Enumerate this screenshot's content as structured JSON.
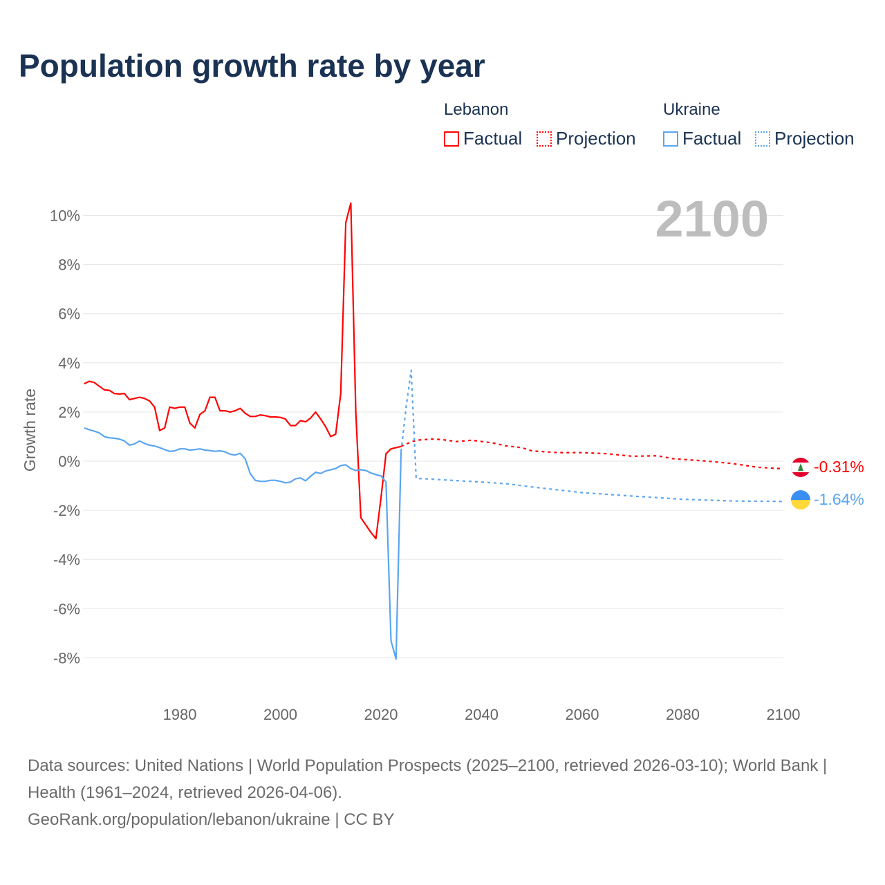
{
  "title": "Population growth rate by year",
  "legend": {
    "groups": [
      {
        "country": "Lebanon",
        "factual": "Factual",
        "projection": "Projection",
        "color": "#ff0000"
      },
      {
        "country": "Ukraine",
        "factual": "Factual",
        "projection": "Projection",
        "color": "#5aa5f0"
      }
    ]
  },
  "year_label": "2100",
  "end_labels": {
    "lebanon": "-0.31%",
    "ukraine": "-1.64%"
  },
  "footer": {
    "sources": "Data sources: United Nations | World Population Prospects (2025–2100, retrieved 2026-03-10); World Bank | Health (1961–2024, retrieved 2026-04-06).",
    "credit": "GeoRank.org/population/lebanon/ukraine | CC BY"
  },
  "chart_data": {
    "type": "line",
    "title": "Population growth rate by year",
    "xlabel": "",
    "ylabel": "Growth rate",
    "xlim": [
      1961,
      2100
    ],
    "ylim": [
      -9.5,
      11
    ],
    "xticks": [
      1980,
      2000,
      2020,
      2040,
      2060,
      2080,
      2100
    ],
    "yticks": [
      10,
      8,
      6,
      4,
      2,
      0,
      -2,
      -4,
      -6,
      -8
    ],
    "ytick_labels": [
      "10%",
      "8%",
      "6%",
      "4%",
      "2%",
      "0%",
      "-2%",
      "-4%",
      "-6%",
      "-8%"
    ],
    "series": [
      {
        "name": "Lebanon Factual",
        "color": "#ff0000",
        "dashed": false,
        "x_start": 1961,
        "values": [
          3.15,
          3.25,
          3.2,
          3.05,
          2.9,
          2.88,
          2.75,
          2.73,
          2.75,
          2.5,
          2.55,
          2.6,
          2.55,
          2.45,
          2.2,
          1.25,
          1.35,
          2.2,
          2.15,
          2.2,
          2.2,
          1.55,
          1.35,
          1.9,
          2.05,
          2.6,
          2.6,
          2.05,
          2.05,
          2.0,
          2.05,
          2.15,
          1.95,
          1.82,
          1.82,
          1.88,
          1.85,
          1.8,
          1.8,
          1.78,
          1.72,
          1.45,
          1.45,
          1.65,
          1.6,
          1.75,
          2.0,
          1.72,
          1.4,
          1.0,
          1.1,
          2.75,
          9.7,
          10.5,
          2.0,
          -2.3,
          -2.6,
          -2.9,
          -3.15,
          -1.5,
          0.3,
          0.5,
          0.55,
          0.6
        ]
      },
      {
        "name": "Lebanon Projection",
        "color": "#ff0000",
        "dashed": true,
        "x": [
          2024,
          2025,
          2027,
          2030,
          2032,
          2035,
          2038,
          2042,
          2045,
          2048,
          2050,
          2055,
          2060,
          2065,
          2070,
          2075,
          2078,
          2085,
          2090,
          2095,
          2100
        ],
        "values": [
          0.6,
          0.7,
          0.85,
          0.9,
          0.88,
          0.8,
          0.85,
          0.75,
          0.62,
          0.55,
          0.42,
          0.35,
          0.35,
          0.3,
          0.2,
          0.22,
          0.1,
          0.0,
          -0.1,
          -0.25,
          -0.31
        ]
      },
      {
        "name": "Ukraine Factual",
        "color": "#5aa5f0",
        "dashed": false,
        "x_start": 1961,
        "values": [
          1.35,
          1.28,
          1.22,
          1.15,
          1.0,
          0.95,
          0.93,
          0.9,
          0.82,
          0.65,
          0.7,
          0.82,
          0.72,
          0.65,
          0.62,
          0.55,
          0.47,
          0.4,
          0.42,
          0.5,
          0.5,
          0.45,
          0.47,
          0.5,
          0.45,
          0.43,
          0.4,
          0.42,
          0.38,
          0.28,
          0.25,
          0.32,
          0.1,
          -0.5,
          -0.78,
          -0.82,
          -0.82,
          -0.78,
          -0.78,
          -0.82,
          -0.88,
          -0.85,
          -0.72,
          -0.68,
          -0.8,
          -0.62,
          -0.45,
          -0.5,
          -0.4,
          -0.35,
          -0.3,
          -0.18,
          -0.15,
          -0.3,
          -0.38,
          -0.35,
          -0.38,
          -0.48,
          -0.55,
          -0.6,
          -0.85,
          -7.3,
          -8.05,
          0.4
        ]
      },
      {
        "name": "Ukraine Projection",
        "color": "#5aa5f0",
        "dashed": true,
        "x": [
          2024,
          2025,
          2026,
          2027,
          2030,
          2040,
          2045,
          2050,
          2060,
          2070,
          2080,
          2090,
          2100
        ],
        "values": [
          0.4,
          2.2,
          3.7,
          -0.7,
          -0.73,
          -0.85,
          -0.92,
          -1.05,
          -1.28,
          -1.42,
          -1.55,
          -1.62,
          -1.64
        ]
      }
    ]
  }
}
